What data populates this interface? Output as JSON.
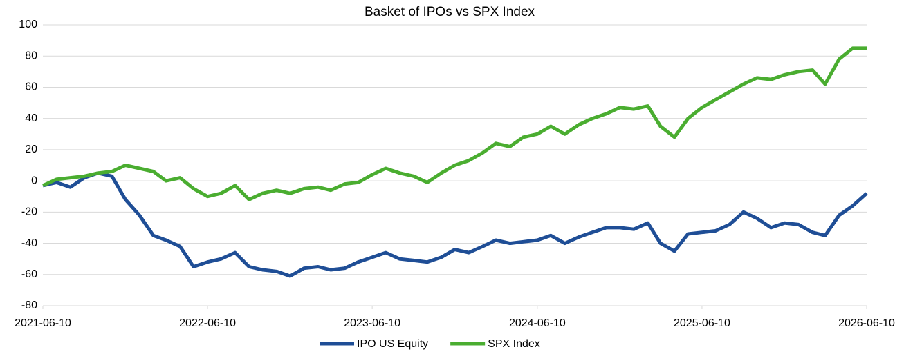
{
  "chart_data": {
    "type": "line",
    "title": "Basket of IPOs vs SPX Index",
    "x": [
      "2021-06-10",
      "2021-07-10",
      "2021-08-10",
      "2021-09-10",
      "2021-10-10",
      "2021-11-10",
      "2021-12-10",
      "2022-01-10",
      "2022-02-10",
      "2022-03-10",
      "2022-04-10",
      "2022-05-10",
      "2022-06-10",
      "2022-07-10",
      "2022-08-10",
      "2022-09-10",
      "2022-10-10",
      "2022-11-10",
      "2022-12-10",
      "2023-01-10",
      "2023-02-10",
      "2023-03-10",
      "2023-04-10",
      "2023-05-10",
      "2023-06-10",
      "2023-07-10",
      "2023-08-10",
      "2023-09-10",
      "2023-10-10",
      "2023-11-10",
      "2023-12-10",
      "2024-01-10",
      "2024-02-10",
      "2024-03-10",
      "2024-04-10",
      "2024-05-10",
      "2024-06-10",
      "2024-07-10",
      "2024-08-10",
      "2024-09-10",
      "2024-10-10",
      "2024-11-10",
      "2024-12-10",
      "2025-01-10",
      "2025-02-10",
      "2025-03-10",
      "2025-04-10",
      "2025-05-10",
      "2025-06-10",
      "2025-07-10",
      "2025-08-10",
      "2025-09-10",
      "2025-10-10",
      "2025-11-10",
      "2025-12-10",
      "2026-01-10",
      "2026-02-10",
      "2026-03-10",
      "2026-04-10",
      "2026-05-10",
      "2026-06-10"
    ],
    "series": [
      {
        "name": "IPO US Equity",
        "color": "#1f4e96",
        "values": [
          -3,
          -1,
          -4,
          2,
          5,
          3,
          -12,
          -22,
          -35,
          -38,
          -42,
          -55,
          -52,
          -50,
          -46,
          -55,
          -57,
          -58,
          -61,
          -56,
          -55,
          -57,
          -56,
          -52,
          -49,
          -46,
          -50,
          -51,
          -52,
          -49,
          -44,
          -46,
          -42,
          -38,
          -40,
          -39,
          -38,
          -35,
          -40,
          -36,
          -33,
          -30,
          -30,
          -31,
          -27,
          -40,
          -45,
          -34,
          -33,
          -32,
          -28,
          -20,
          -24,
          -30,
          -27,
          -28,
          -33,
          -35,
          -22,
          -16,
          -8
        ]
      },
      {
        "name": "SPX Index",
        "color": "#4aad30",
        "values": [
          -3,
          1,
          2,
          3,
          5,
          6,
          10,
          8,
          6,
          0,
          2,
          -5,
          -10,
          -8,
          -3,
          -12,
          -8,
          -6,
          -8,
          -5,
          -4,
          -6,
          -2,
          -1,
          4,
          8,
          5,
          3,
          -1,
          5,
          10,
          13,
          18,
          24,
          22,
          28,
          30,
          35,
          30,
          36,
          40,
          43,
          47,
          46,
          48,
          35,
          28,
          40,
          47,
          52,
          57,
          62,
          66,
          65,
          68,
          70,
          71,
          62,
          78,
          85,
          85
        ]
      }
    ],
    "xlim": [
      "2021-06-10",
      "2026-06-10"
    ],
    "xticks": [
      "2021-06-10",
      "2022-06-10",
      "2023-06-10",
      "2024-06-10",
      "2025-06-10",
      "2026-06-10"
    ],
    "ylim": [
      -80,
      100
    ],
    "yticks": [
      -80,
      -60,
      -40,
      -20,
      0,
      20,
      40,
      60,
      80,
      100
    ],
    "grid": true,
    "legend": "bottom"
  }
}
